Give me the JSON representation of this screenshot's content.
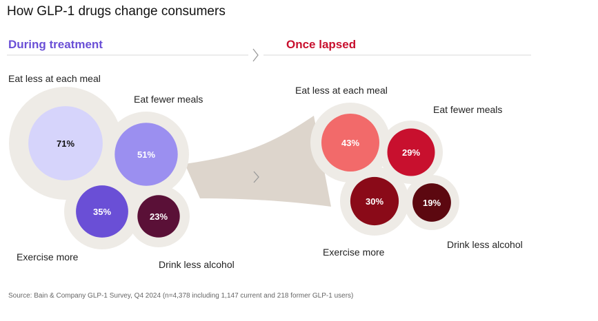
{
  "title": "How GLP-1 drugs change consumers",
  "source": "Source: Bain & Company GLP-1 Survey, Q4 2024 (n=4,378 including 1,147 current and 218 former GLP-1 users)",
  "colors": {
    "background_circle": "#eeebe6",
    "funnel": "#ddd5cc",
    "divider": "#d9d9d9",
    "arrow": "#9a9a9a",
    "during_heading": "#6a4fd6",
    "lapsed_heading": "#c8102e"
  },
  "chart_data": [
    {
      "type": "bubble",
      "title": "During treatment",
      "unit": "%",
      "categories": [
        "Eat less at each meal",
        "Eat fewer meals",
        "Exercise more",
        "Drink less alcohol"
      ],
      "values": [
        71,
        51,
        35,
        23
      ],
      "labels": [
        "71%",
        "51%",
        "35%",
        "23%"
      ],
      "colors": [
        "#d6d4fb",
        "#9b8ff0",
        "#6a4fd6",
        "#5a1037"
      ],
      "text_colors": [
        "#111111",
        "#ffffff",
        "#ffffff",
        "#ffffff"
      ]
    },
    {
      "type": "bubble",
      "title": "Once lapsed",
      "unit": "%",
      "categories": [
        "Eat less at each meal",
        "Eat fewer meals",
        "Exercise more",
        "Drink less alcohol"
      ],
      "values": [
        43,
        29,
        30,
        19
      ],
      "labels": [
        "43%",
        "29%",
        "30%",
        "19%"
      ],
      "colors": [
        "#f26a6a",
        "#c8102e",
        "#8a0a18",
        "#5c0810"
      ],
      "text_colors": [
        "#ffffff",
        "#ffffff",
        "#ffffff",
        "#ffffff"
      ]
    }
  ]
}
